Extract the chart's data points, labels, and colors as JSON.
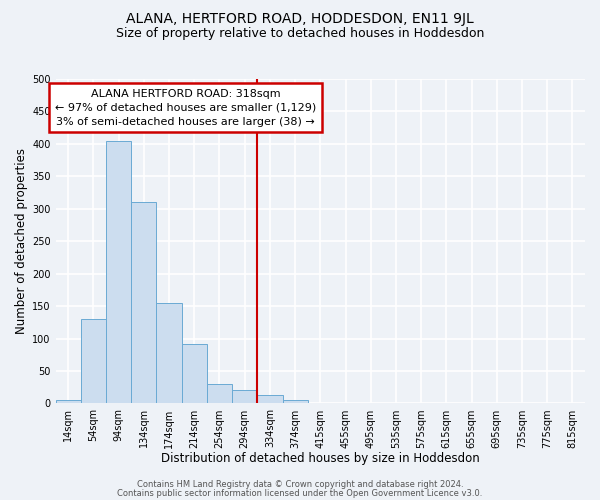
{
  "title": "ALANA, HERTFORD ROAD, HODDESDON, EN11 9JL",
  "subtitle": "Size of property relative to detached houses in Hoddesdon",
  "xlabel": "Distribution of detached houses by size in Hoddesdon",
  "ylabel": "Number of detached properties",
  "footer_line1": "Contains HM Land Registry data © Crown copyright and database right 2024.",
  "footer_line2": "Contains public sector information licensed under the Open Government Licence v3.0.",
  "bin_labels": [
    "14sqm",
    "54sqm",
    "94sqm",
    "134sqm",
    "174sqm",
    "214sqm",
    "254sqm",
    "294sqm",
    "334sqm",
    "374sqm",
    "415sqm",
    "455sqm",
    "495sqm",
    "535sqm",
    "575sqm",
    "615sqm",
    "655sqm",
    "695sqm",
    "735sqm",
    "775sqm",
    "815sqm"
  ],
  "bar_values": [
    5,
    130,
    405,
    311,
    155,
    91,
    30,
    20,
    13,
    5,
    0,
    0,
    0,
    0,
    1,
    0,
    0,
    0,
    0,
    0,
    0
  ],
  "bar_color": "#ccddef",
  "bar_edge_color": "#6aaad4",
  "ylim": [
    0,
    500
  ],
  "yticks": [
    0,
    50,
    100,
    150,
    200,
    250,
    300,
    350,
    400,
    450,
    500
  ],
  "property_line_x": 7.5,
  "property_line_color": "#cc0000",
  "annotation_title": "ALANA HERTFORD ROAD: 318sqm",
  "annotation_line1": "← 97% of detached houses are smaller (1,129)",
  "annotation_line2": "3% of semi-detached houses are larger (38) →",
  "annotation_box_color": "#ffffff",
  "annotation_border_color": "#cc0000",
  "background_color": "#eef2f7",
  "grid_color": "#ffffff",
  "title_fontsize": 10,
  "subtitle_fontsize": 9,
  "axis_label_fontsize": 8.5,
  "tick_fontsize": 7,
  "annotation_fontsize": 8,
  "footer_fontsize": 6
}
